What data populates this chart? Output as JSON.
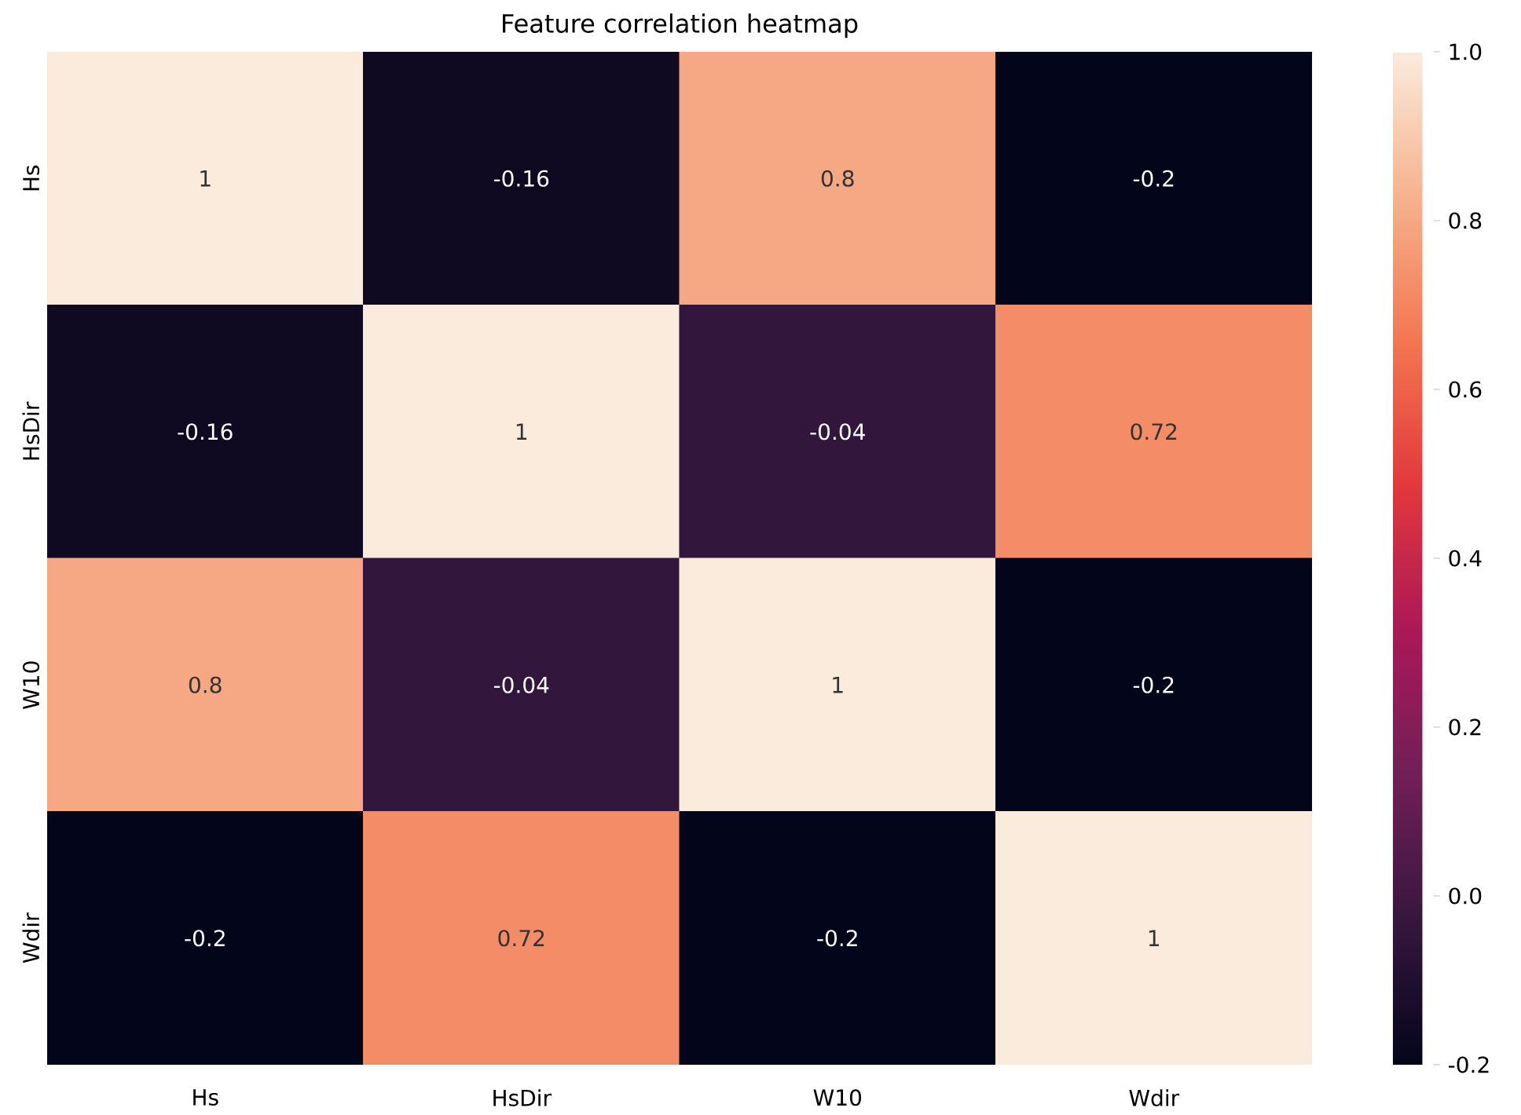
{
  "chart_data": {
    "type": "heatmap",
    "title": "Feature correlation heatmap",
    "categories": [
      "Hs",
      "HsDir",
      "W10",
      "Wdir"
    ],
    "y_categories": [
      "Hs",
      "HsDir",
      "W10",
      "Wdir"
    ],
    "cells": [
      [
        1,
        -0.16,
        0.8,
        -0.2
      ],
      [
        -0.16,
        1,
        -0.04,
        0.72
      ],
      [
        0.8,
        -0.04,
        1,
        -0.2
      ],
      [
        -0.2,
        0.72,
        -0.2,
        1
      ]
    ],
    "cell_labels": [
      [
        "1",
        "-0.16",
        "0.8",
        "-0.2"
      ],
      [
        "-0.16",
        "1",
        "-0.04",
        "0.72"
      ],
      [
        "0.8",
        "-0.04",
        "1",
        "-0.2"
      ],
      [
        "-0.2",
        "0.72",
        "-0.2",
        "1"
      ]
    ],
    "clim": [
      -0.2,
      1.0
    ],
    "cticks": [
      -0.2,
      {
        "value": 0,
        "label": "0.0"
      },
      0.2,
      0.4,
      0.6,
      0.8,
      {
        "value": 1,
        "label": "1.0"
      }
    ]
  }
}
